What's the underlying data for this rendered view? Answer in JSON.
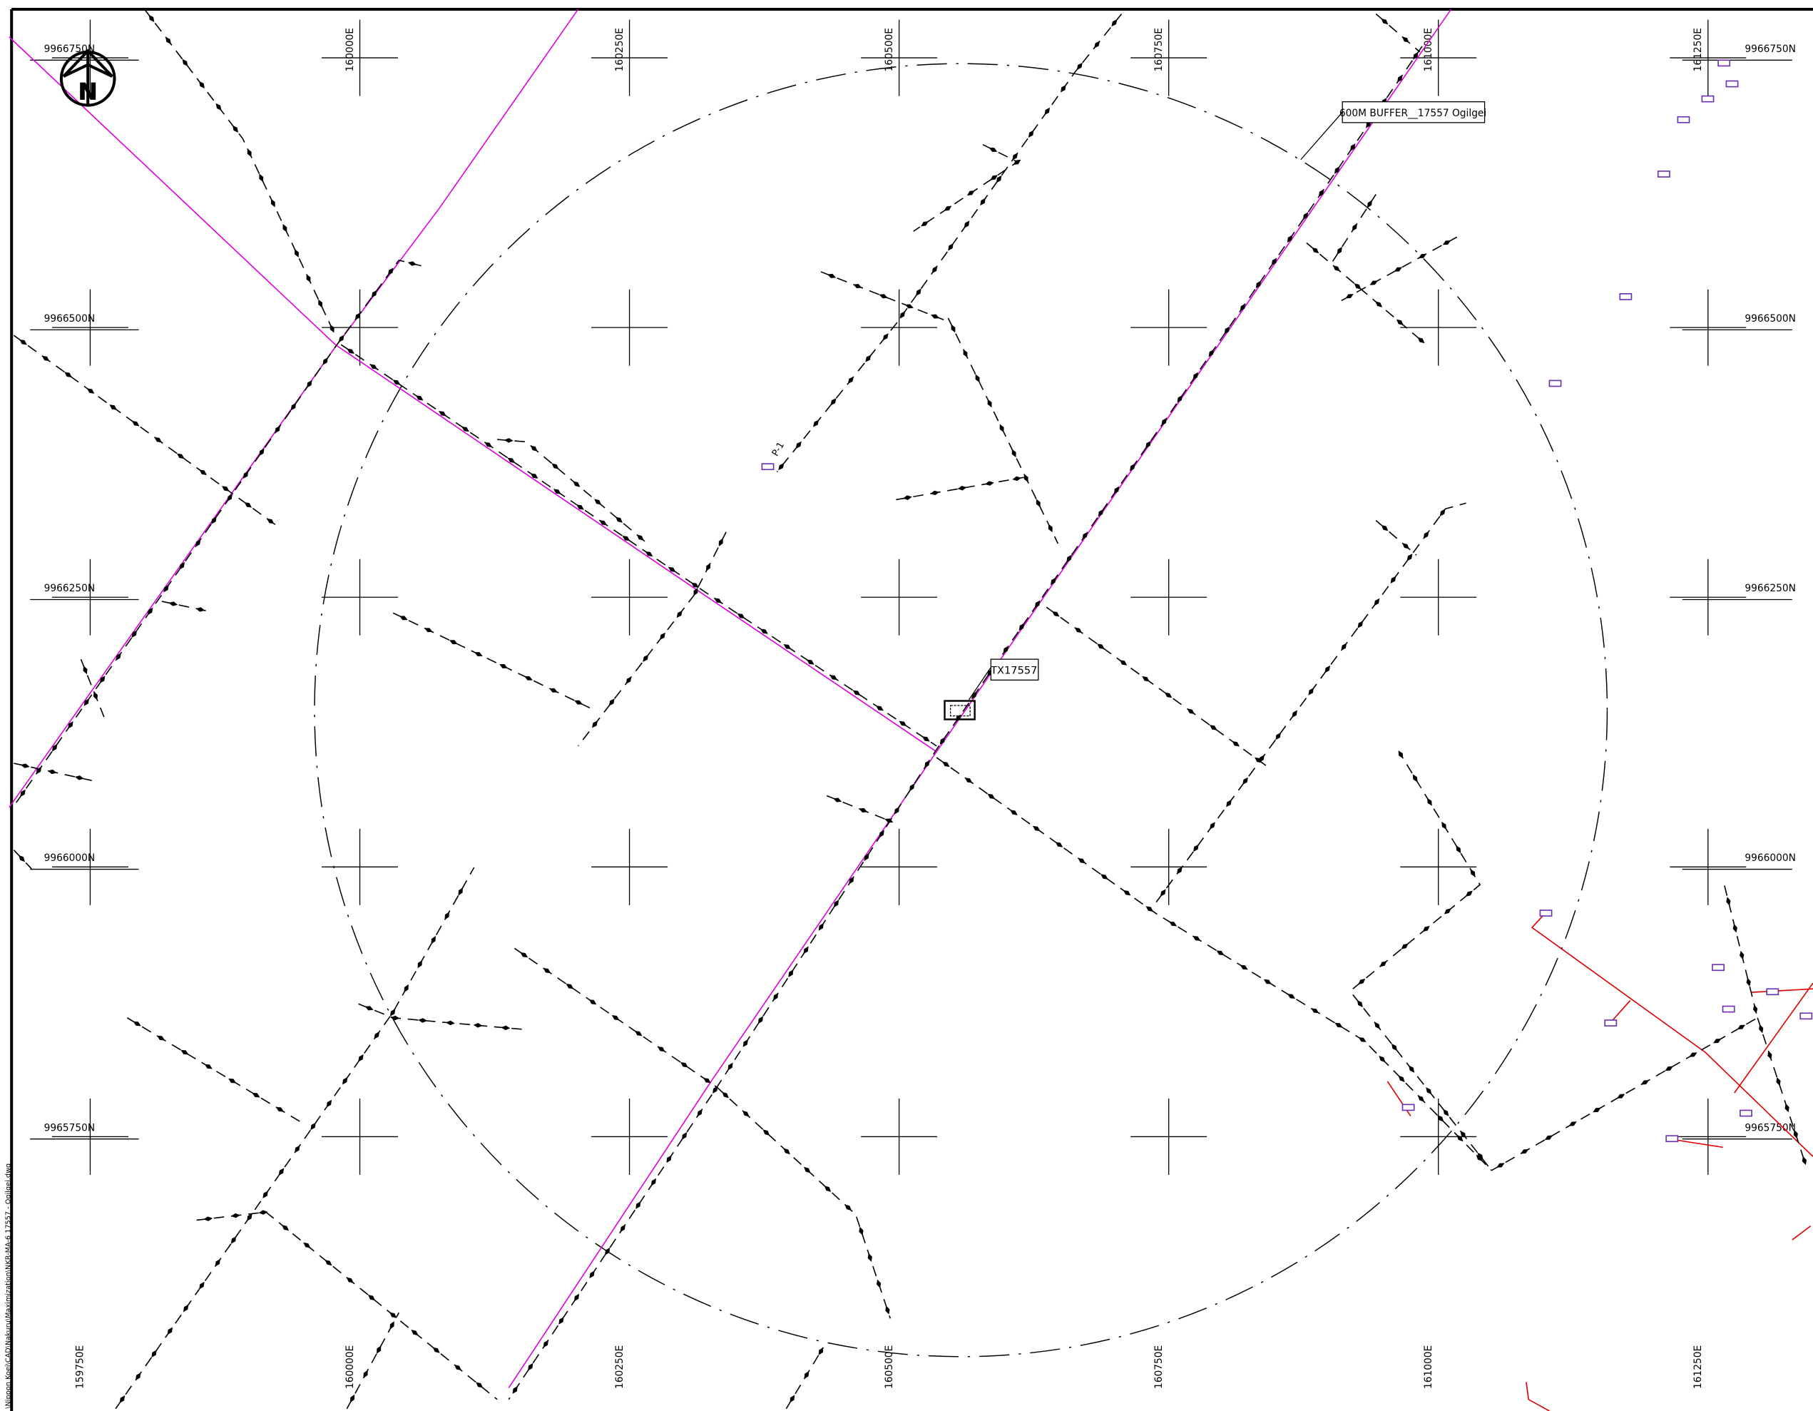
{
  "grid": {
    "eastings_top": [
      "160000E",
      "160250E",
      "160500E",
      "160750E",
      "161000E",
      "161250E"
    ],
    "eastings_bottom": [
      "159750E",
      "160000E",
      "160250E",
      "160500E",
      "160750E",
      "161000E",
      "161250E"
    ],
    "northings_left": [
      "9966750N",
      "9966500N",
      "9966250N",
      "9966000N",
      "9965750N"
    ],
    "northings_right": [
      "9966750N",
      "9966500N",
      "9966250N",
      "9966000N",
      "9965750N"
    ]
  },
  "north_arrow": "N",
  "buffer_label": "600M BUFFER__17557 Ogilgei",
  "transformer_label": "TX17557",
  "pole_label": "P-1",
  "file_path": "\\Nippon Koei\\CAD\\Nakuru\\Maximization\\NKR-MA-6 17557 - Ogilgei.dwg"
}
